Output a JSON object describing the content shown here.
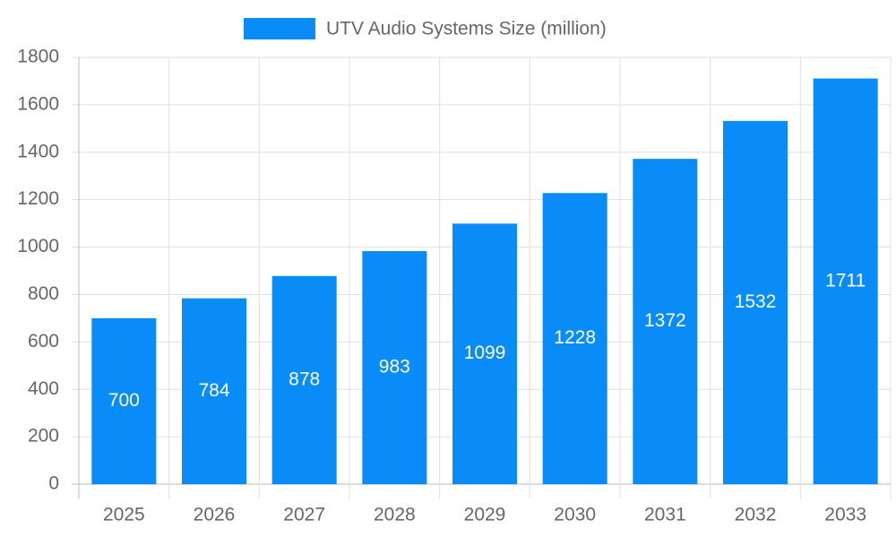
{
  "chart_data": {
    "type": "bar",
    "categories": [
      "2025",
      "2026",
      "2027",
      "2028",
      "2029",
      "2030",
      "2031",
      "2032",
      "2033"
    ],
    "series": [
      {
        "name": "UTV Audio Systems Size (million)",
        "color": "#0a8cf8",
        "values": [
          700,
          784,
          878,
          983,
          1099,
          1228,
          1372,
          1532,
          1711
        ]
      }
    ],
    "ylim": [
      0,
      1800
    ],
    "yticks": [
      0,
      200,
      400,
      600,
      800,
      1000,
      1200,
      1400,
      1600,
      1800
    ],
    "grid": true,
    "legend": "top"
  }
}
